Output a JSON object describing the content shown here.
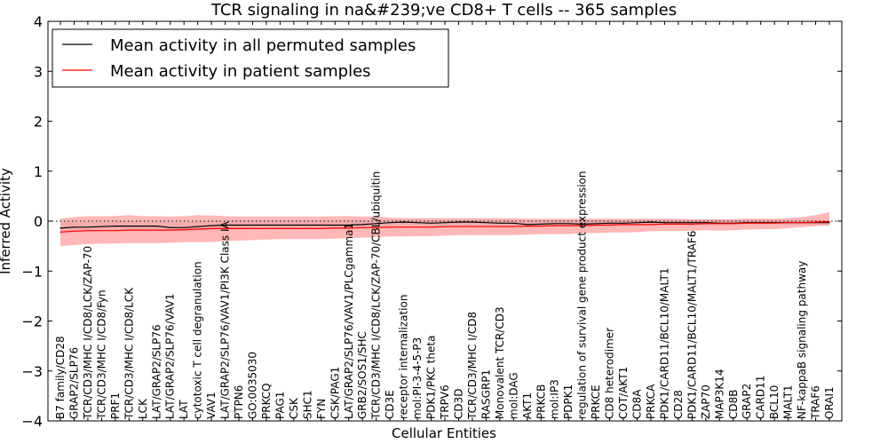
{
  "chart_data": {
    "type": "line",
    "title": "TCR signaling in na&#239;ve CD8+ T cells -- 365 samples",
    "xlabel": "Cellular Entities",
    "ylabel": "Inferred Activity",
    "ylim": [
      -4,
      4
    ],
    "yticks": [
      "−4",
      "−3",
      "−2",
      "−1",
      "0",
      "1",
      "2",
      "3",
      "4"
    ],
    "grid": false,
    "legend_position": "top-left",
    "colors": {
      "permuted": "#000000",
      "patient": "#ff0000",
      "patient_band": "#ff9999",
      "permuted_band": "#bfbfbf"
    },
    "categories": [
      "B7 family/CD28",
      "GRAP2/SLP76",
      "TCR/CD3/MHC I/CD8/LCK/ZAP-70",
      "TCR/CD3/MHC I/CD8/Fyn",
      "PRF1",
      "TCR/CD3/MHC I/CD8/LCK",
      "LCK",
      "LAT/GRAP2/SLP76",
      "LAT/GRAP2/SLP76/VAV1",
      "LAT",
      "cytotoxic T cell degranulation",
      "VAV1",
      "LAT/GRAP2/SLP76/VAV1/PI3K Class IA",
      "PTPN6",
      "GO:0035030",
      "PRKCQ",
      "PAG1",
      "CSK",
      "SHC1",
      "FYN",
      "CSK/PAG1",
      "LAT/GRAP2/SLP76/VAV1/PLCgamma1",
      "GRB2/SOS1/SHC",
      "TCR/CD3/MHC I/CD8/LCK/ZAP-70/CBL/ubiquitin",
      "CD3E",
      "receptor internalization",
      "mol:PI-3-4-5-P3",
      "PDK1/PKC theta",
      "TRPV6",
      "CD3D",
      "TCR/CD3/MHC I/CD8",
      "RASGRP1",
      "Monovalent TCR/CD3",
      "mol:DAG",
      "AKT1",
      "PRKCB",
      "mol:IP3",
      "PDPK1",
      "regulation of survival gene product expression",
      "PRKCE",
      "CD8 heterodimer",
      "COT/AKT1",
      "CD8A",
      "PRKCA",
      "PDK1/CARD11/BCL10/MALT1",
      "CD28",
      "PDK1/CARD11/BCL10/MALT1/TRAF6",
      "ZAP70",
      "MAP3K14",
      "CD8B",
      "GRAP2",
      "CARD11",
      "BCL10",
      "MALT1",
      "NF-kappaB signaling pathway",
      "TRAF6",
      "ORAI1"
    ],
    "series": [
      {
        "name": "Mean activity in all permuted samples",
        "values": [
          -0.14,
          -0.12,
          -0.12,
          -0.11,
          -0.1,
          -0.1,
          -0.1,
          -0.1,
          -0.13,
          -0.13,
          -0.11,
          -0.09,
          -0.08,
          -0.08,
          -0.08,
          -0.08,
          -0.08,
          -0.08,
          -0.08,
          -0.08,
          -0.08,
          -0.08,
          -0.07,
          -0.05,
          -0.03,
          -0.02,
          -0.03,
          -0.04,
          -0.03,
          -0.02,
          -0.02,
          -0.03,
          -0.04,
          -0.04,
          -0.07,
          -0.06,
          -0.05,
          -0.05,
          -0.06,
          -0.05,
          -0.04,
          -0.04,
          -0.03,
          -0.02,
          -0.03,
          -0.03,
          -0.03,
          -0.03,
          -0.04,
          -0.04,
          -0.03,
          -0.03,
          -0.03,
          -0.03,
          -0.03,
          -0.03,
          -0.03
        ],
        "band_low": [
          -0.22,
          -0.22,
          -0.22,
          -0.21,
          -0.21,
          -0.21,
          -0.21,
          -0.21,
          -0.21,
          -0.21,
          -0.2,
          -0.19,
          -0.18,
          -0.17,
          -0.16,
          -0.16,
          -0.16,
          -0.16,
          -0.16,
          -0.16,
          -0.16,
          -0.16,
          -0.14,
          -0.13,
          -0.11,
          -0.1,
          -0.1,
          -0.1,
          -0.1,
          -0.09,
          -0.09,
          -0.09,
          -0.09,
          -0.09,
          -0.1,
          -0.1,
          -0.1,
          -0.1,
          -0.1,
          -0.1,
          -0.09,
          -0.09,
          -0.09,
          -0.08,
          -0.08,
          -0.08,
          -0.08,
          -0.08,
          -0.08,
          -0.08,
          -0.08,
          -0.08,
          -0.08,
          -0.08,
          -0.08,
          -0.08,
          -0.1
        ],
        "band_high": [
          -0.02,
          -0.02,
          -0.02,
          -0.01,
          0.0,
          0.0,
          0.0,
          0.0,
          -0.01,
          -0.02,
          -0.01,
          0.0,
          0.01,
          0.01,
          0.01,
          0.01,
          0.01,
          0.01,
          0.01,
          0.01,
          0.01,
          0.01,
          0.02,
          0.02,
          0.03,
          0.03,
          0.03,
          0.02,
          0.02,
          0.03,
          0.03,
          0.02,
          0.02,
          0.02,
          0.01,
          0.01,
          0.02,
          0.02,
          0.02,
          0.02,
          0.02,
          0.02,
          0.02,
          0.02,
          0.02,
          0.02,
          0.02,
          0.02,
          0.02,
          0.02,
          0.02,
          0.02,
          0.02,
          0.02,
          0.02,
          0.02,
          0.02
        ]
      },
      {
        "name": "Mean activity in patient samples",
        "values": [
          -0.22,
          -0.2,
          -0.19,
          -0.19,
          -0.19,
          -0.18,
          -0.18,
          -0.18,
          -0.18,
          -0.17,
          -0.16,
          -0.15,
          -0.15,
          -0.15,
          -0.15,
          -0.15,
          -0.15,
          -0.15,
          -0.15,
          -0.15,
          -0.14,
          -0.14,
          -0.13,
          -0.13,
          -0.12,
          -0.12,
          -0.12,
          -0.12,
          -0.11,
          -0.11,
          -0.11,
          -0.11,
          -0.11,
          -0.11,
          -0.1,
          -0.1,
          -0.09,
          -0.09,
          -0.09,
          -0.08,
          -0.08,
          -0.07,
          -0.07,
          -0.07,
          -0.06,
          -0.06,
          -0.06,
          -0.05,
          -0.05,
          -0.05,
          -0.04,
          -0.04,
          -0.04,
          -0.03,
          -0.03,
          -0.02,
          -0.01
        ],
        "band_low": [
          -0.5,
          -0.48,
          -0.46,
          -0.45,
          -0.45,
          -0.44,
          -0.44,
          -0.44,
          -0.43,
          -0.42,
          -0.42,
          -0.42,
          -0.4,
          -0.39,
          -0.38,
          -0.37,
          -0.36,
          -0.36,
          -0.36,
          -0.36,
          -0.35,
          -0.34,
          -0.33,
          -0.32,
          -0.31,
          -0.31,
          -0.3,
          -0.3,
          -0.29,
          -0.28,
          -0.28,
          -0.28,
          -0.28,
          -0.28,
          -0.27,
          -0.26,
          -0.26,
          -0.26,
          -0.24,
          -0.24,
          -0.23,
          -0.23,
          -0.22,
          -0.2,
          -0.2,
          -0.2,
          -0.19,
          -0.18,
          -0.19,
          -0.18,
          -0.17,
          -0.16,
          -0.16,
          -0.14,
          -0.12,
          -0.1,
          -0.08
        ],
        "band_high": [
          0.05,
          0.08,
          0.1,
          0.1,
          0.1,
          0.12,
          0.1,
          0.1,
          0.09,
          0.1,
          0.12,
          0.11,
          0.1,
          0.09,
          0.09,
          0.09,
          0.09,
          0.09,
          0.09,
          0.09,
          0.1,
          0.1,
          0.09,
          0.09,
          0.07,
          0.06,
          0.06,
          0.06,
          0.06,
          0.06,
          0.06,
          0.06,
          0.06,
          0.06,
          0.05,
          0.05,
          0.05,
          0.05,
          0.05,
          0.05,
          0.05,
          0.05,
          0.05,
          0.05,
          0.05,
          0.05,
          0.04,
          0.04,
          0.04,
          0.04,
          0.05,
          0.05,
          0.05,
          0.06,
          0.08,
          0.12,
          0.18
        ]
      }
    ]
  }
}
